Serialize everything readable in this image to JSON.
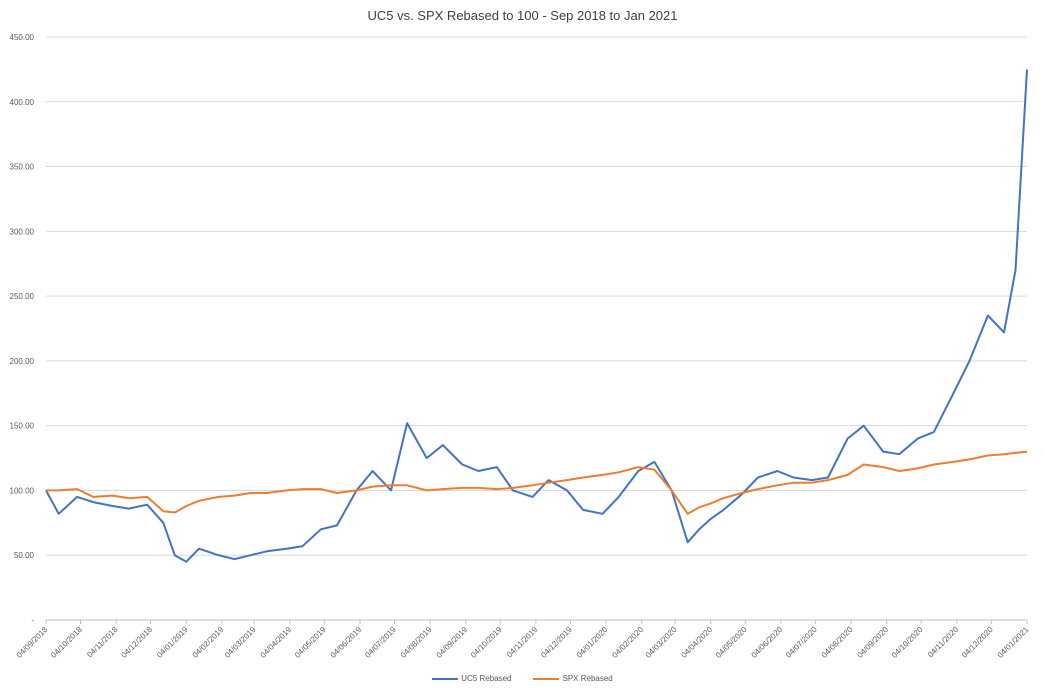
{
  "chart_data": {
    "type": "line",
    "title": "UC5 vs. SPX Rebased to 100 - Sep 2018 to Jan 2021",
    "xlabel": "",
    "ylabel": "",
    "ylim": [
      0,
      450
    ],
    "grid": true,
    "legend_position": "bottom",
    "y_ticks": [
      "-",
      "50.00",
      "100.00",
      "150.00",
      "200.00",
      "250.00",
      "300.00",
      "350.00",
      "400.00",
      "450.00"
    ],
    "x_ticks": [
      "04/09/2018",
      "04/10/2018",
      "04/11/2018",
      "04/12/2018",
      "04/01/2019",
      "04/02/2019",
      "04/03/2019",
      "04/04/2019",
      "04/05/2019",
      "04/06/2019",
      "04/07/2019",
      "04/08/2019",
      "04/09/2019",
      "04/10/2019",
      "04/11/2019",
      "04/12/2019",
      "04/01/2020",
      "04/02/2020",
      "04/03/2020",
      "04/04/2020",
      "04/05/2020",
      "04/06/2020",
      "04/07/2020",
      "04/08/2020",
      "04/09/2020",
      "04/10/2020",
      "04/11/2020",
      "04/12/2020",
      "04/01/2021"
    ],
    "x": [
      "04/09/2018",
      "15/09/2018",
      "01/10/2018",
      "15/10/2018",
      "01/11/2018",
      "15/11/2018",
      "01/12/2018",
      "15/12/2018",
      "25/12/2018",
      "04/01/2019",
      "15/01/2019",
      "01/02/2019",
      "15/02/2019",
      "01/03/2019",
      "15/03/2019",
      "01/04/2019",
      "15/04/2019",
      "01/05/2019",
      "15/05/2019",
      "01/06/2019",
      "15/06/2019",
      "01/07/2019",
      "15/07/2019",
      "01/08/2019",
      "15/08/2019",
      "01/09/2019",
      "15/09/2019",
      "01/10/2019",
      "15/10/2019",
      "01/11/2019",
      "15/11/2019",
      "01/12/2019",
      "15/12/2019",
      "01/01/2020",
      "15/01/2020",
      "01/02/2020",
      "15/02/2020",
      "01/03/2020",
      "15/03/2020",
      "25/03/2020",
      "04/04/2020",
      "15/04/2020",
      "01/05/2020",
      "15/05/2020",
      "01/06/2020",
      "15/06/2020",
      "01/07/2020",
      "15/07/2020",
      "01/08/2020",
      "15/08/2020",
      "01/09/2020",
      "15/09/2020",
      "01/10/2020",
      "15/10/2020",
      "01/11/2020",
      "15/11/2020",
      "01/12/2020",
      "15/12/2020",
      "25/12/2020",
      "04/01/2021"
    ],
    "series": [
      {
        "name": "UC5 Rebased",
        "color": "#4472c4",
        "values": [
          100,
          82,
          95,
          91,
          88,
          86,
          89,
          75,
          50,
          45,
          55,
          50,
          47,
          50,
          53,
          55,
          57,
          70,
          73,
          100,
          115,
          100,
          152,
          125,
          135,
          120,
          115,
          118,
          100,
          95,
          108,
          100,
          85,
          82,
          95,
          115,
          122,
          100,
          60,
          70,
          78,
          85,
          97,
          110,
          115,
          110,
          108,
          110,
          140,
          150,
          130,
          128,
          140,
          145,
          175,
          200,
          235,
          222,
          270,
          425
        ]
      },
      {
        "name": "SPX Rebased",
        "color": "#ed7d31",
        "values": [
          100,
          100,
          101,
          95,
          96,
          94,
          95,
          84,
          83,
          88,
          92,
          95,
          96,
          98,
          98,
          100,
          101,
          101,
          98,
          100,
          103,
          104,
          104,
          100,
          101,
          102,
          102,
          101,
          102,
          104,
          106,
          108,
          110,
          112,
          114,
          118,
          116,
          100,
          82,
          87,
          90,
          94,
          98,
          101,
          104,
          106,
          106,
          108,
          112,
          120,
          118,
          115,
          117,
          120,
          122,
          124,
          127,
          128,
          129,
          130
        ]
      }
    ]
  }
}
